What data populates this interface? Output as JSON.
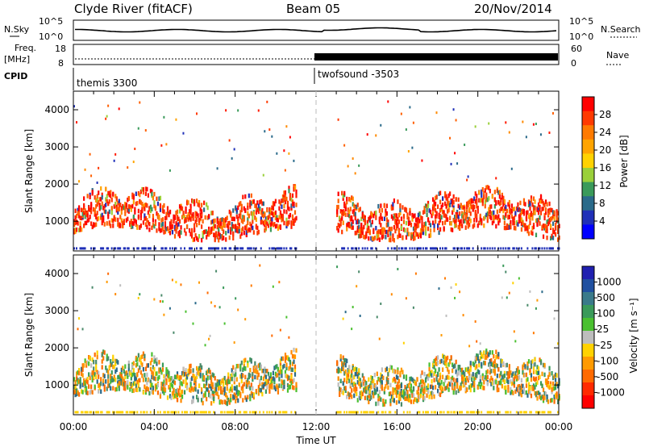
{
  "header": {
    "station": "Clyde River (fitACF)",
    "beam": "Beam 05",
    "date": "20/Nov/2014"
  },
  "aux_panels": {
    "nsky_label": "N.Sky",
    "nsearch_label": "N.Search",
    "nsky_ticks": [
      "10^5",
      "10^0"
    ],
    "nsearch_ticks": [
      "10^5",
      "10^0"
    ],
    "freq_label_1": "Freq.",
    "freq_label_2": "[MHz]",
    "freq_ticks": [
      "18",
      "8"
    ],
    "nave_label": "Nave",
    "nave_ticks": [
      "60",
      "0"
    ],
    "cpid_label": "CPID",
    "cpid_segments": [
      {
        "name": "themis 3300",
        "start": "00:00",
        "end": "12:00"
      },
      {
        "name": "twofsound -3503",
        "start": "12:00",
        "end": "24:00"
      }
    ]
  },
  "chart_data": [
    {
      "type": "heatmap",
      "name": "power-panel",
      "xlabel": "",
      "ylabel": "Slant Range [km]",
      "xlim": [
        0,
        24
      ],
      "ylim": [
        200,
        4500
      ],
      "yticks": [
        1000,
        2000,
        3000,
        4000
      ],
      "colorbar": {
        "label": "Power [dB]",
        "ticks": [
          "28",
          "24",
          "20",
          "16",
          "12",
          "8",
          "4"
        ],
        "colors": [
          "#ff0000",
          "#ff3a00",
          "#ff7a00",
          "#ffa400",
          "#ffd200",
          "#9ad03a",
          "#3a9a5a",
          "#2a6a8a",
          "#2030b8",
          "#0000ff"
        ]
      },
      "echo_regions": [
        {
          "t_start": 0.0,
          "t_end": 11.0,
          "r_min": 400,
          "r_max": 1900,
          "value_dB": 28
        },
        {
          "t_start": 13.0,
          "t_end": 24.0,
          "r_min": 400,
          "r_max": 1800,
          "value_dB": 28
        }
      ]
    },
    {
      "type": "heatmap",
      "name": "velocity-panel",
      "xlabel": "Time UT",
      "ylabel": "Slant Range [km]",
      "xlim": [
        0,
        24
      ],
      "ylim": [
        200,
        4500
      ],
      "xticks": [
        "00:00",
        "04:00",
        "08:00",
        "12:00",
        "16:00",
        "20:00",
        "00:00"
      ],
      "yticks": [
        1000,
        2000,
        3000,
        4000
      ],
      "colorbar": {
        "label": "Velocity [m s⁻¹]",
        "ticks": [
          "1000",
          "500",
          "100",
          "25",
          "-25",
          "-100",
          "-500",
          "-1000"
        ],
        "colors": [
          "#2020b0",
          "#2050a0",
          "#3a7a8a",
          "#3a9a5a",
          "#4ac030",
          "#bdbdbd",
          "#ffd200",
          "#ff9a00",
          "#ff6a00",
          "#ff2a00",
          "#ff0000"
        ]
      },
      "echo_regions": [
        {
          "t_start": 0.0,
          "t_end": 11.0,
          "r_min": 400,
          "r_max": 1900,
          "value_ms": -100
        },
        {
          "t_start": 13.0,
          "t_end": 24.0,
          "r_min": 400,
          "r_max": 1800,
          "value_ms": -25
        }
      ]
    }
  ]
}
